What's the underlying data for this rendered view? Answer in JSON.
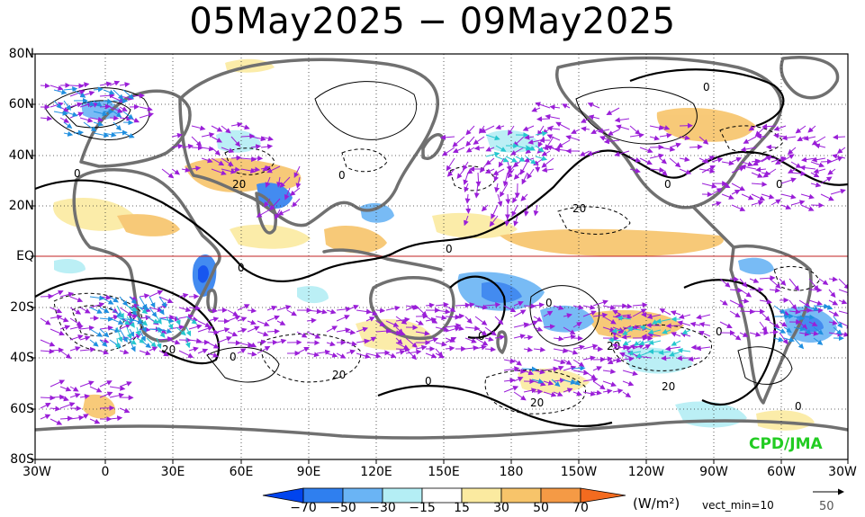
{
  "title": "05May2025 − 09May2025",
  "lat_labels": [
    "80N",
    "60N",
    "40N",
    "20N",
    "EQ",
    "20S",
    "40S",
    "60S",
    "80S"
  ],
  "lon_labels": [
    "30W",
    "0",
    "30E",
    "60E",
    "90E",
    "120E",
    "150E",
    "180",
    "150W",
    "120W",
    "90W",
    "60W",
    "30W"
  ],
  "colorbar": {
    "ticks": [
      "−70",
      "−50",
      "−30",
      "−15",
      "15",
      "30",
      "50",
      "70"
    ],
    "colors": [
      "#0044ee",
      "#2f7fef",
      "#6ab4f5",
      "#b4eef5",
      "#ffffff",
      "#fbeaa0",
      "#f7c46a",
      "#f59a45",
      "#f36b1f"
    ]
  },
  "units": "(W/m²)",
  "vect_min": "vect_min=10",
  "reference_vector": "50",
  "credit": "CPD/JMA",
  "contour_labels": [
    "0",
    "20",
    "0",
    "0",
    "0",
    "20",
    "0",
    "0",
    "0",
    "0",
    "20",
    "0",
    "20",
    "20",
    "0",
    "20",
    "0",
    "0",
    "0",
    "20",
    "0"
  ],
  "colors": {
    "land": "#707070",
    "positive_contour": "#000000",
    "arrow_primary": "#9a1ed8",
    "arrow_secondary": "#1f8fe0",
    "arrow_tertiary": "#27c7cf",
    "equator": "#c02020"
  }
}
